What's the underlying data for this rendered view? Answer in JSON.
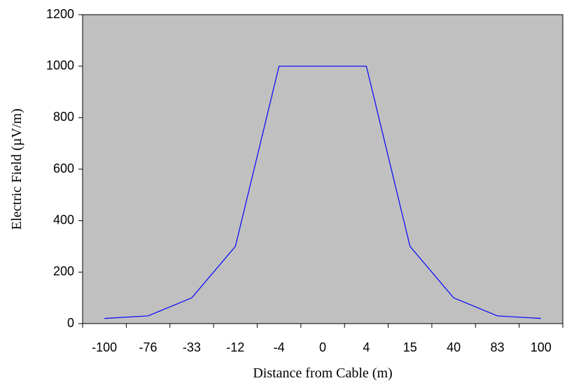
{
  "chart_data": {
    "type": "line",
    "x_label": "Distance from Cable (m)",
    "y_label": "Electric Field (µV/m)",
    "categories": [
      "-100",
      "-76",
      "-33",
      "-12",
      "-4",
      "0",
      "4",
      "15",
      "40",
      "83",
      "100"
    ],
    "values": [
      20,
      30,
      100,
      300,
      1000,
      1000,
      1000,
      300,
      100,
      30,
      20
    ],
    "color": "#0000ff",
    "plot_background": "#c0c0c0",
    "ylim": [
      0,
      1200
    ],
    "yticks": [
      0,
      200,
      400,
      600,
      800,
      1000,
      1200
    ],
    "grid": false
  }
}
